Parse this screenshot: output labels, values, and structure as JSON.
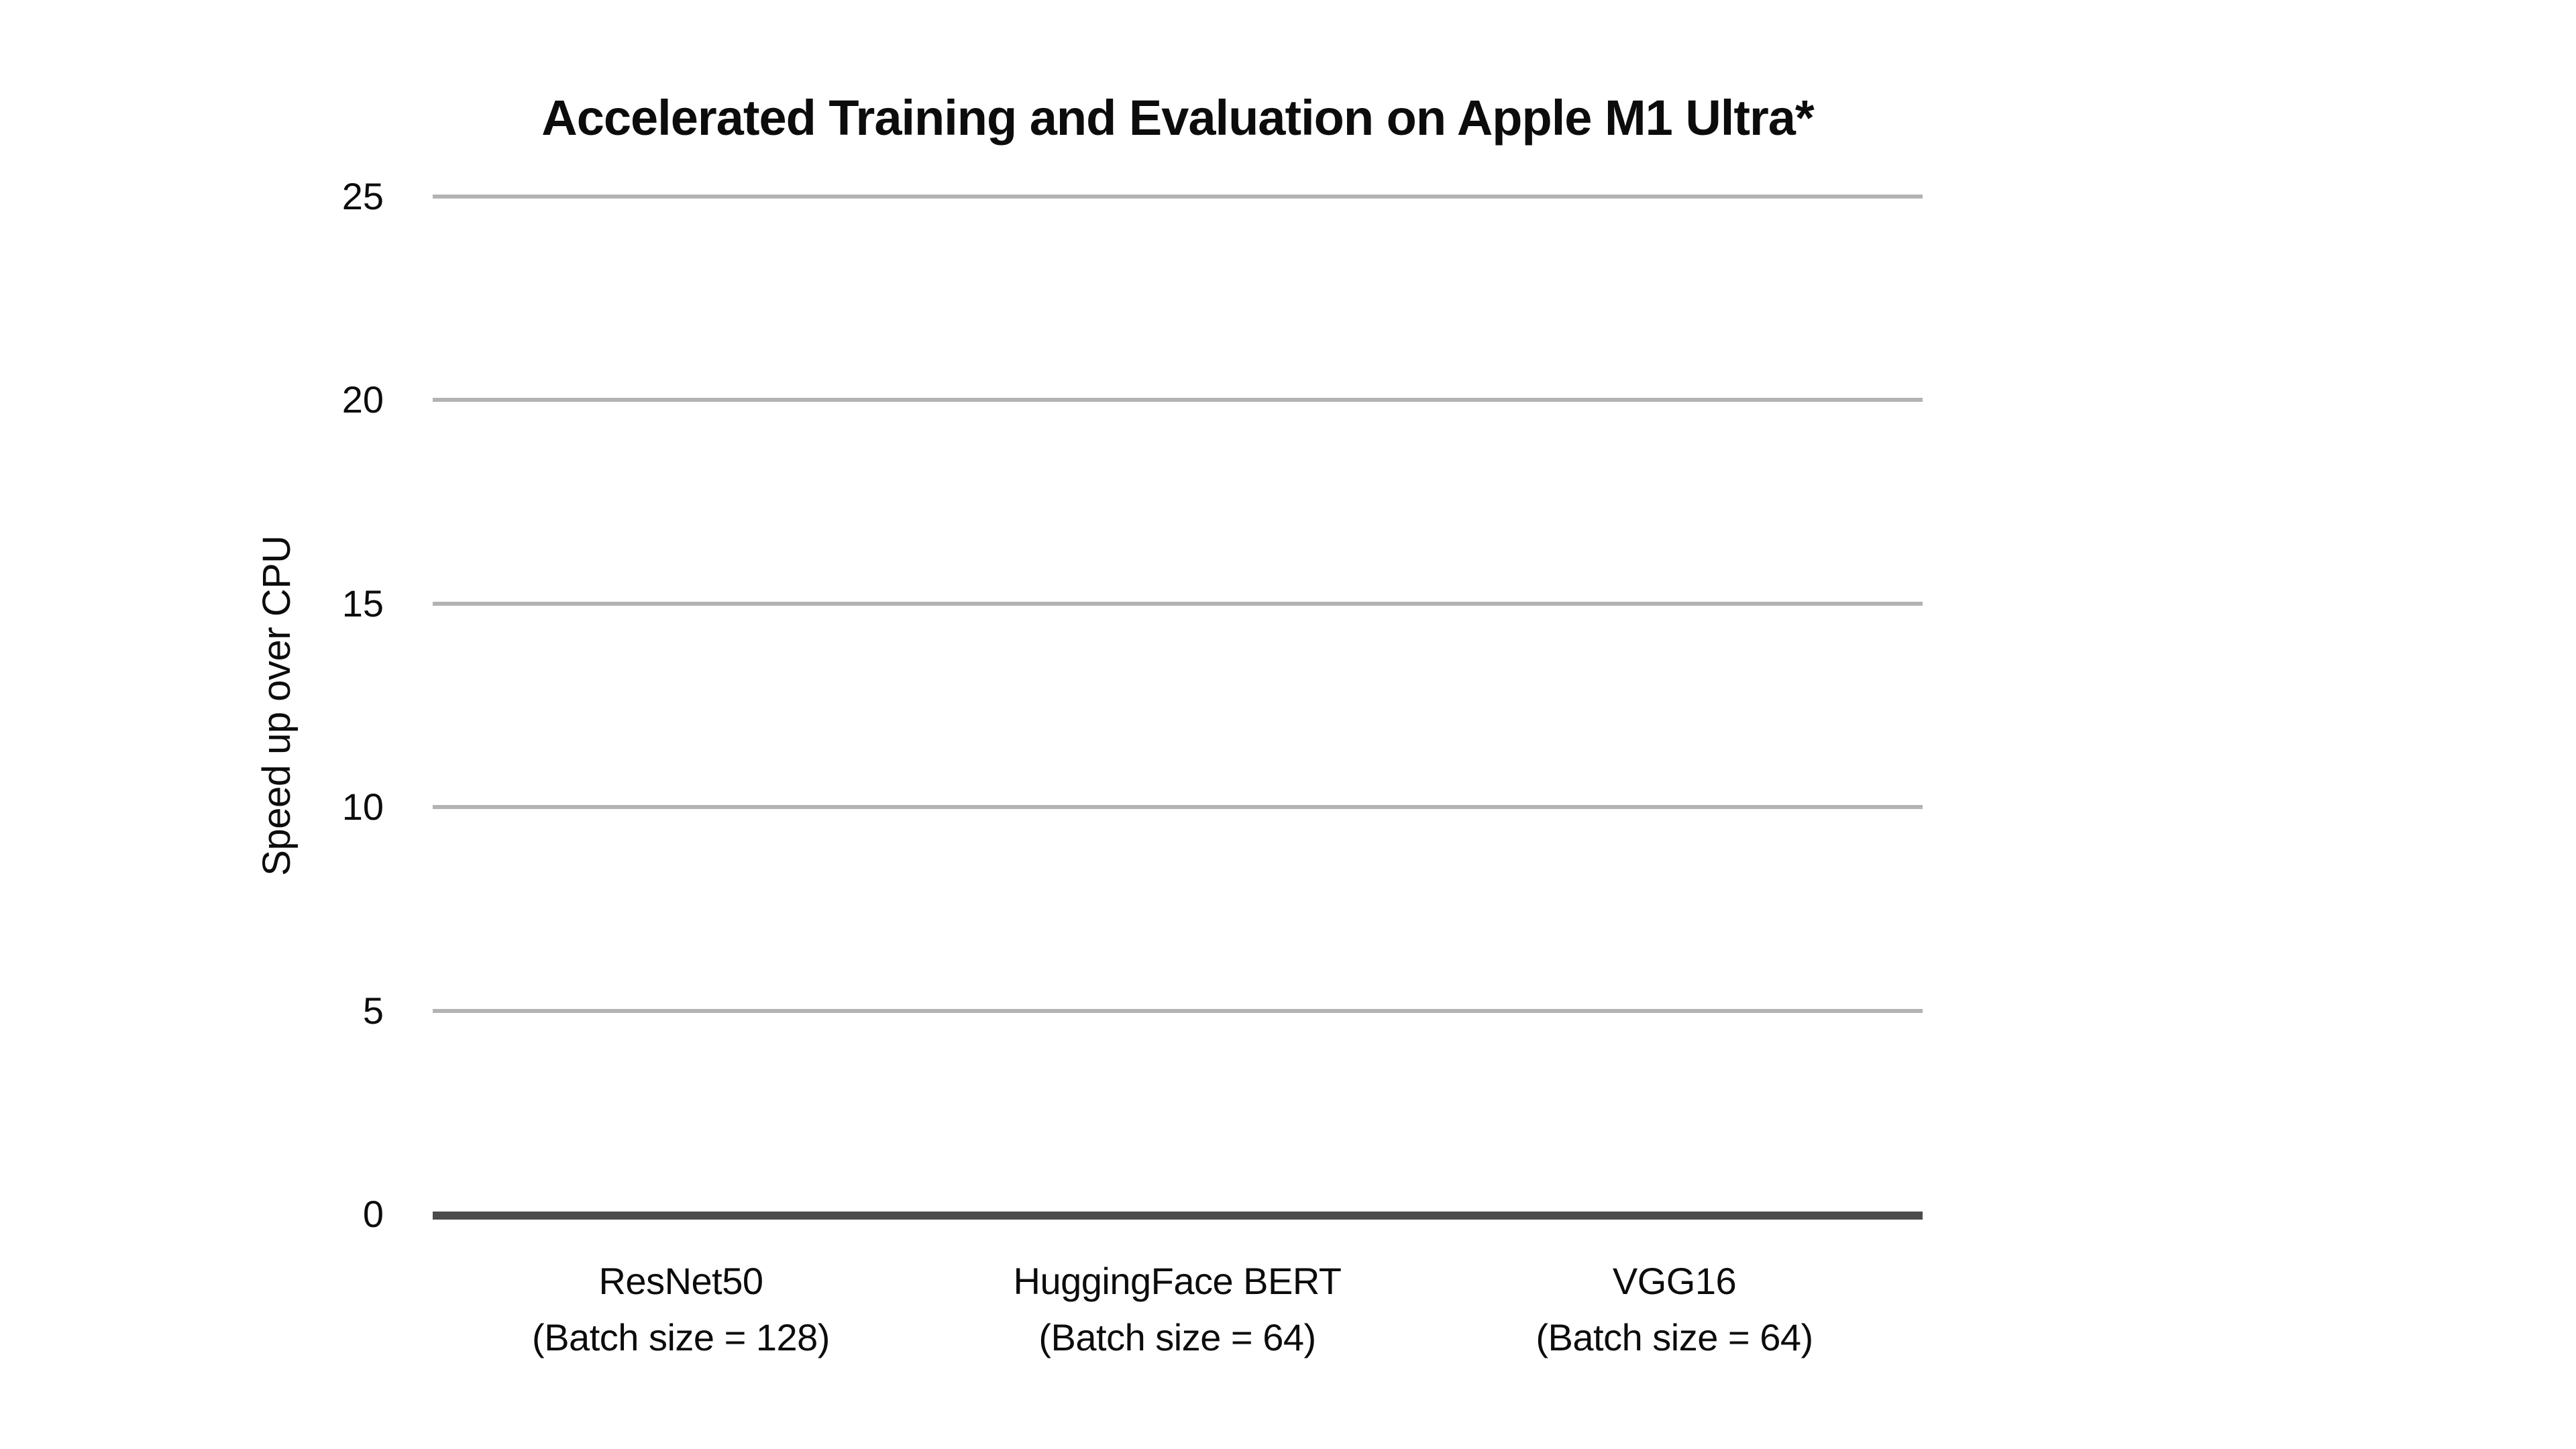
{
  "chart": {
    "title": "Accelerated Training and Evaluation on Apple M1 Ultra*",
    "y_axis": {
      "label": "Speed up over CPU",
      "ticks": [
        "25",
        "20",
        "15",
        "10",
        "5",
        "0"
      ]
    },
    "x_axis": {
      "categories": [
        {
          "name": "ResNet50",
          "batch": "(Batch size = 128)"
        },
        {
          "name": "HuggingFace BERT",
          "batch": "(Batch size = 64)"
        },
        {
          "name": "VGG16",
          "batch": "(Batch size = 64)"
        }
      ]
    },
    "colors": {
      "background": "#ffffff",
      "gridline": "#b3b3b3",
      "axis_line": "#4b4b4b",
      "text": "#0c0c0c"
    }
  },
  "chart_data": {
    "type": "bar",
    "title": "Accelerated Training and Evaluation on Apple M1 Ultra*",
    "xlabel": "",
    "ylabel": "Speed up over CPU",
    "categories": [
      "ResNet50 (Batch size = 128)",
      "HuggingFace BERT (Batch size = 64)",
      "VGG16 (Batch size = 64)"
    ],
    "values": [
      0,
      0,
      0
    ],
    "bars_visible": false,
    "ylim": [
      0,
      25
    ],
    "yticks": [
      0,
      5,
      10,
      15,
      20,
      25
    ],
    "grid": true,
    "legend_position": "none"
  }
}
